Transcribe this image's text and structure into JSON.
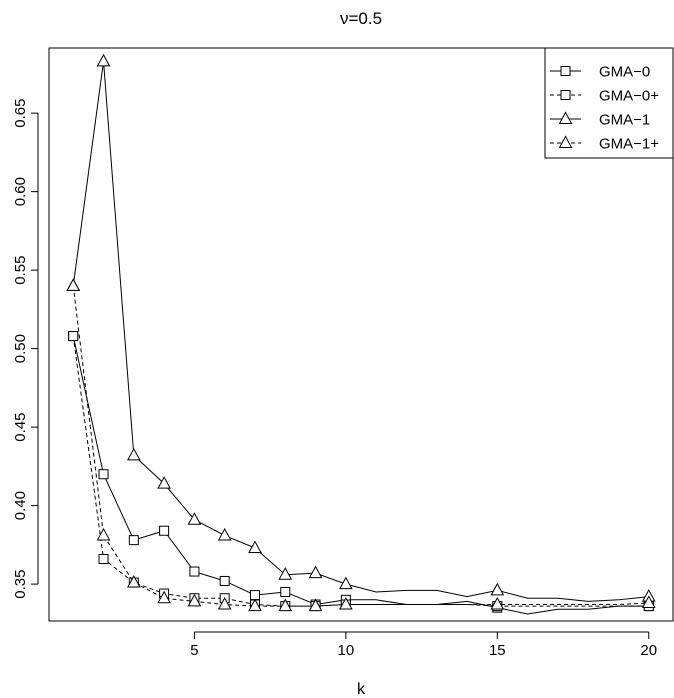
{
  "chart_data": {
    "type": "line",
    "title": "ν=0.5",
    "xlabel": "k",
    "ylabel": "",
    "xlim": [
      0.2,
      20.8
    ],
    "ylim": [
      0.3265,
      0.6915
    ],
    "x_ticks": [
      5,
      10,
      15,
      20
    ],
    "x_tick_labels": [
      "5",
      "10",
      "15",
      "20"
    ],
    "y_ticks": [
      0.35,
      0.4,
      0.45,
      0.5,
      0.55,
      0.6,
      0.65
    ],
    "y_tick_labels": [
      "0.35",
      "0.40",
      "0.45",
      "0.50",
      "0.55",
      "0.60",
      "0.65"
    ],
    "grid": false,
    "legend_position": "top-right",
    "marker_x": [
      1,
      2,
      3,
      4,
      5,
      6,
      7,
      8,
      9,
      10,
      15,
      20
    ],
    "series": [
      {
        "name": "GMA−0",
        "line": "solid",
        "marker": "square",
        "x": [
          1,
          2,
          3,
          4,
          5,
          6,
          7,
          8,
          9,
          10,
          11,
          12,
          13,
          14,
          15,
          16,
          17,
          18,
          19,
          20
        ],
        "values": [
          0.508,
          0.42,
          0.378,
          0.384,
          0.358,
          0.352,
          0.343,
          0.345,
          0.337,
          0.34,
          0.34,
          0.337,
          0.337,
          0.339,
          0.335,
          0.331,
          0.334,
          0.334,
          0.336,
          0.336
        ]
      },
      {
        "name": "GMA−0+",
        "line": "dashed",
        "marker": "square",
        "x": [
          1,
          2,
          3,
          4,
          5,
          6,
          7,
          8,
          9,
          10,
          11,
          12,
          13,
          14,
          15,
          16,
          17,
          18,
          19,
          20
        ],
        "values": [
          0.508,
          0.366,
          0.351,
          0.344,
          0.341,
          0.341,
          0.337,
          0.336,
          0.336,
          0.337,
          0.337,
          0.337,
          0.337,
          0.337,
          0.336,
          0.336,
          0.336,
          0.336,
          0.336,
          0.336
        ]
      },
      {
        "name": "GMA−1",
        "line": "solid",
        "marker": "triangle",
        "x": [
          1,
          2,
          3,
          4,
          5,
          6,
          7,
          8,
          9,
          10,
          11,
          12,
          13,
          14,
          15,
          16,
          17,
          18,
          19,
          20
        ],
        "values": [
          0.54,
          0.683,
          0.432,
          0.414,
          0.391,
          0.381,
          0.373,
          0.356,
          0.357,
          0.35,
          0.345,
          0.346,
          0.346,
          0.342,
          0.346,
          0.341,
          0.341,
          0.339,
          0.34,
          0.342
        ]
      },
      {
        "name": "GMA−1+",
        "line": "dashed",
        "marker": "triangle",
        "x": [
          1,
          2,
          3,
          4,
          5,
          6,
          7,
          8,
          9,
          10,
          11,
          12,
          13,
          14,
          15,
          16,
          17,
          18,
          19,
          20
        ],
        "values": [
          0.54,
          0.381,
          0.351,
          0.341,
          0.339,
          0.337,
          0.336,
          0.336,
          0.336,
          0.337,
          0.337,
          0.337,
          0.337,
          0.337,
          0.337,
          0.337,
          0.337,
          0.337,
          0.337,
          0.338
        ]
      }
    ]
  }
}
